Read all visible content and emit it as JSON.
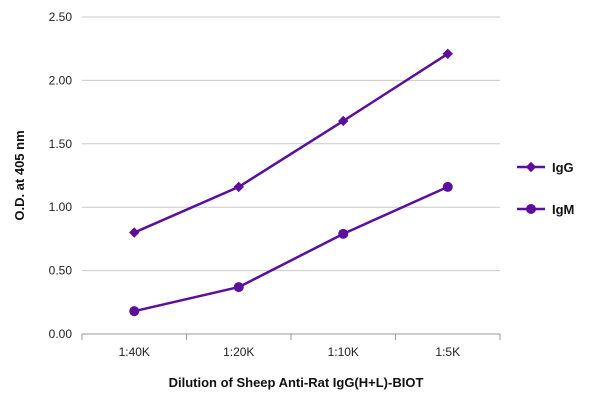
{
  "chart_data": {
    "type": "line",
    "xlabel": "Dilution of Sheep Anti-Rat IgG(H+L)-BIOT",
    "ylabel": "O.D. at 405 nm",
    "categories": [
      "1:40K",
      "1:20K",
      "1:10K",
      "1:5K"
    ],
    "ylim": [
      0,
      2.5
    ],
    "yticks": [
      "0.00",
      "0.50",
      "1.00",
      "1.50",
      "2.00",
      "2.50"
    ],
    "grid": "horizontal",
    "legend": "right",
    "series": [
      {
        "name": "IgG",
        "marker": "diamond",
        "color": "#5b0f9c",
        "values": [
          0.8,
          1.16,
          1.68,
          2.21
        ]
      },
      {
        "name": "IgM",
        "marker": "circle",
        "color": "#5b0f9c",
        "values": [
          0.18,
          0.37,
          0.79,
          1.16
        ]
      }
    ]
  }
}
